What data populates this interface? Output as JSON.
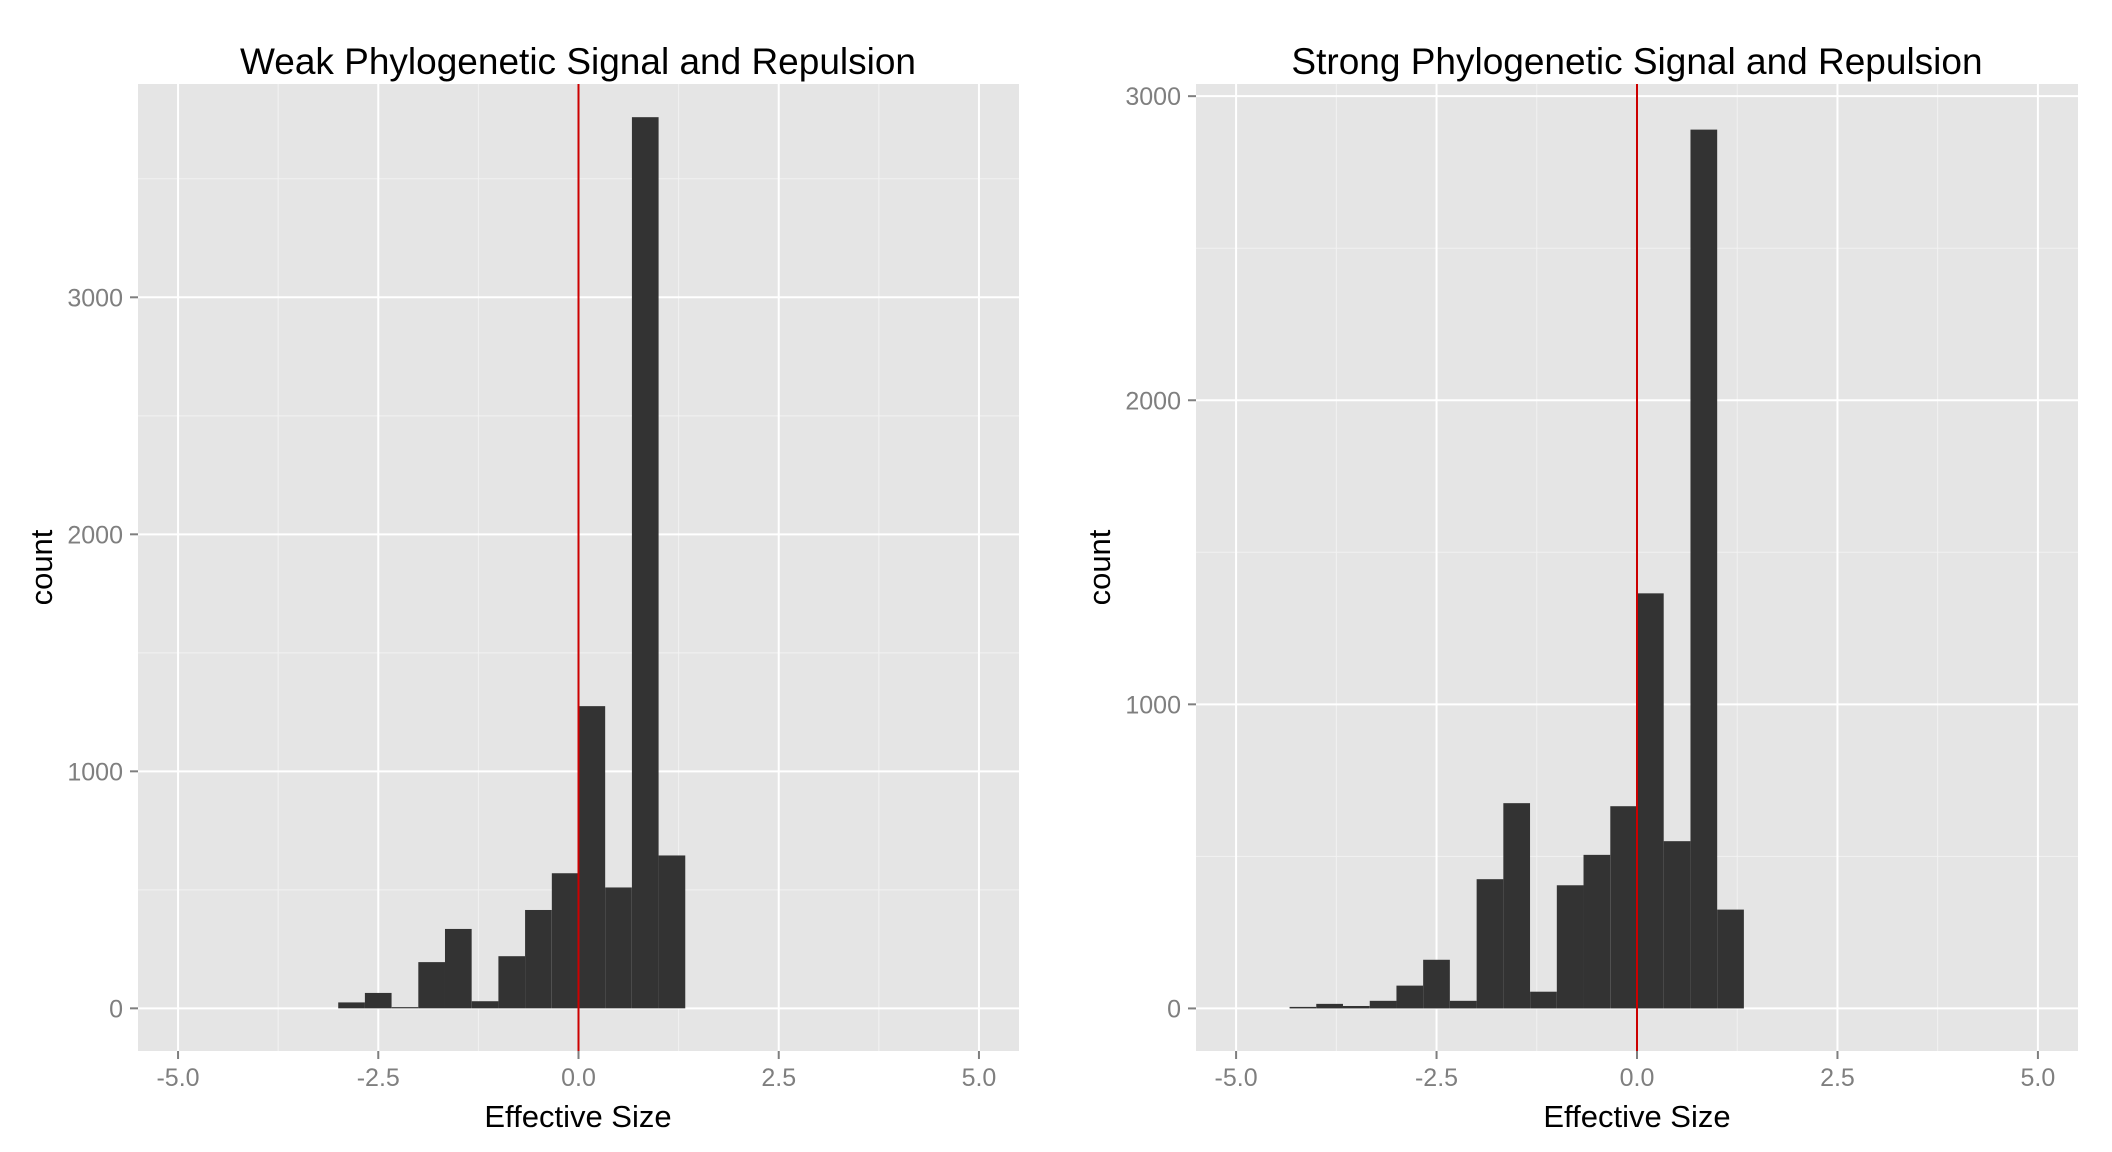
{
  "chart_data": [
    {
      "type": "bar",
      "title": "Weak Phylogenetic Signal and Repulsion",
      "xlabel": "Effective Size",
      "ylabel": "count",
      "xlim": [
        -5.5,
        5.5
      ],
      "ylim": [
        -180,
        3900
      ],
      "x_ticks": [
        -5.0,
        -2.5,
        0.0,
        2.5,
        5.0
      ],
      "x_tick_labels": [
        "-5.0",
        "-2.5",
        "0.0",
        "2.5",
        "5.0"
      ],
      "y_ticks": [
        0,
        1000,
        2000,
        3000
      ],
      "y_tick_labels": [
        "0",
        "1000",
        "2000",
        "3000"
      ],
      "grid": true,
      "reference_line_x": 0.0,
      "reference_line_color": "#cc0000",
      "bar_color": "#333333",
      "bin_width": 0.333,
      "bin_starts": [
        -3.0,
        -2.667,
        -2.333,
        -2.0,
        -1.667,
        -1.333,
        -1.0,
        -0.667,
        -0.333,
        0.0,
        0.333,
        0.667,
        1.0
      ],
      "values": [
        25,
        65,
        5,
        195,
        335,
        30,
        220,
        415,
        570,
        1275,
        510,
        3760,
        645
      ]
    },
    {
      "type": "bar",
      "title": "Strong Phylogenetic Signal and Repulsion",
      "xlabel": "Effective Size",
      "ylabel": "count",
      "xlim": [
        -5.5,
        5.5
      ],
      "ylim": [
        -140,
        3040
      ],
      "x_ticks": [
        -5.0,
        -2.5,
        0.0,
        2.5,
        5.0
      ],
      "x_tick_labels": [
        "-5.0",
        "-2.5",
        "0.0",
        "2.5",
        "5.0"
      ],
      "y_ticks": [
        0,
        1000,
        2000,
        3000
      ],
      "y_tick_labels": [
        "0",
        "1000",
        "2000",
        "3000"
      ],
      "grid": true,
      "reference_line_x": 0.0,
      "reference_line_color": "#cc0000",
      "bar_color": "#333333",
      "bin_width": 0.333,
      "bin_starts": [
        -4.333,
        -4.0,
        -3.667,
        -3.333,
        -3.0,
        -2.667,
        -2.333,
        -2.0,
        -1.667,
        -1.333,
        -1.0,
        -0.667,
        -0.333,
        0.0,
        0.333,
        0.667,
        1.0
      ],
      "values": [
        5,
        15,
        8,
        25,
        75,
        160,
        25,
        425,
        675,
        55,
        405,
        505,
        665,
        1365,
        550,
        2890,
        325
      ]
    }
  ]
}
